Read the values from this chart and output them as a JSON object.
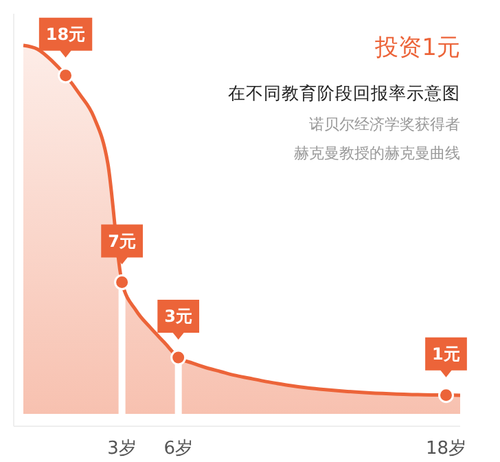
{
  "chart_data": {
    "type": "area",
    "title": "投资1元",
    "subtitle": "在不同教育阶段回报率示意图",
    "annotations": [
      "诺贝尔经济学奖获得者",
      "赫克曼教授的赫克曼曲线"
    ],
    "categories": [
      null,
      null,
      null,
      null,
      null,
      null,
      null,
      "3岁",
      null,
      null,
      null,
      "6岁",
      null,
      null,
      null,
      null,
      null,
      null,
      null,
      null,
      null,
      null,
      null,
      null,
      null,
      null,
      null,
      null,
      null,
      null,
      "18岁",
      null
    ],
    "tick_labels": "x",
    "ref_lines": [
      {
        "axis": "x",
        "value": "3岁",
        "color": "#ffffff"
      },
      {
        "axis": "x",
        "value": "6岁",
        "color": "#ffffff"
      }
    ],
    "series": [
      {
        "color": "#ec6439",
        "values": [
          19.6,
          19.4,
          18.8,
          18,
          17,
          15.8,
          13.3,
          7,
          5.5,
          4.6,
          3.8,
          3,
          2.7,
          2.45,
          2.25,
          2.05,
          1.9,
          1.75,
          1.62,
          1.5,
          1.4,
          1.32,
          1.25,
          1.19,
          1.14,
          1.1,
          1.07,
          1.04,
          1.02,
          1.01,
          1,
          0.99
        ]
      },
      {
        "type": "scatter",
        "color": "#ec6439",
        "marker": "circle",
        "values": [
          null,
          null,
          null,
          18,
          null,
          null,
          null,
          7,
          null,
          null,
          null,
          3,
          null,
          null,
          null,
          null,
          null,
          null,
          null,
          null,
          null,
          null,
          null,
          null,
          null,
          null,
          null,
          null,
          null,
          null,
          1,
          null
        ],
        "value_labels": [
          null,
          null,
          null,
          "18元",
          null,
          null,
          null,
          "7元",
          null,
          null,
          null,
          "3元",
          null,
          null,
          null,
          null,
          null,
          null,
          null,
          null,
          null,
          null,
          null,
          null,
          null,
          null,
          null,
          null,
          null,
          null,
          "1元",
          null
        ]
      }
    ]
  }
}
